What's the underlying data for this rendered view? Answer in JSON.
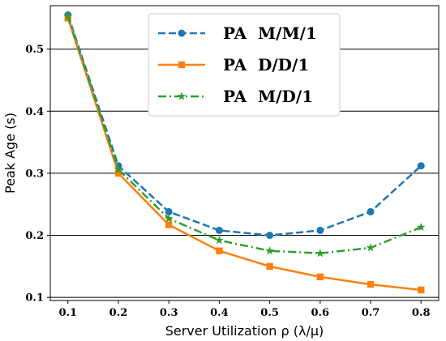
{
  "chart_data": {
    "type": "line",
    "xlabel": "Server Utilization ρ (λ/μ)",
    "ylabel": "Peak Age (s)",
    "x": [
      0.1,
      0.2,
      0.3,
      0.4,
      0.5,
      0.6,
      0.7,
      0.8
    ],
    "xticks": [
      "0.1",
      "0.2",
      "0.3",
      "0.4",
      "0.5",
      "0.6",
      "0.7",
      "0.8"
    ],
    "yticks": [
      "0.1",
      "0.2",
      "0.3",
      "0.4",
      "0.5"
    ],
    "xlim": [
      0.065,
      0.835
    ],
    "ylim": [
      0.095,
      0.57
    ],
    "grid": "horizontal",
    "legend_position": "top-center",
    "series": [
      {
        "name": "PA  M/M/1",
        "color": "#1f77b4",
        "linestyle": "dashed",
        "marker": "circle",
        "values": [
          0.555,
          0.312,
          0.238,
          0.208,
          0.2,
          0.208,
          0.238,
          0.312
        ]
      },
      {
        "name": "PA  D/D/1",
        "color": "#ff7f0e",
        "linestyle": "solid",
        "marker": "square",
        "values": [
          0.55,
          0.3,
          0.217,
          0.175,
          0.15,
          0.133,
          0.121,
          0.112
        ]
      },
      {
        "name": "PA  M/D/1",
        "color": "#2ca02c",
        "linestyle": "dashdot",
        "marker": "star",
        "values": [
          0.553,
          0.306,
          0.227,
          0.192,
          0.175,
          0.171,
          0.18,
          0.213
        ]
      }
    ]
  }
}
